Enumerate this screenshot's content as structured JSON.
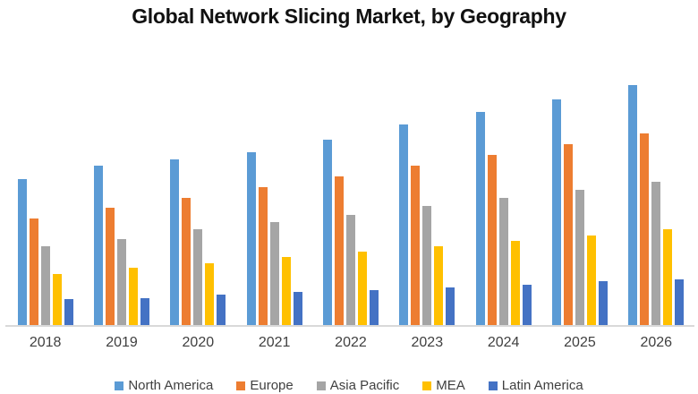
{
  "chart_data": {
    "type": "bar",
    "title": "Global Network Slicing Market, by Geography",
    "categories": [
      "2018",
      "2019",
      "2020",
      "2021",
      "2022",
      "2023",
      "2024",
      "2025",
      "2026"
    ],
    "series": [
      {
        "name": "North America",
        "color": "#5B9BD5",
        "values": [
          61,
          66.5,
          69,
          72,
          77.5,
          83.5,
          89,
          94,
          100
        ]
      },
      {
        "name": "Europe",
        "color": "#ED7D31",
        "values": [
          44.5,
          49,
          53,
          57.5,
          62,
          66.5,
          71,
          75.5,
          80
        ]
      },
      {
        "name": "Asia Pacific",
        "color": "#A5A5A5",
        "values": [
          33,
          36,
          40,
          43,
          46,
          50,
          53,
          56.5,
          60
        ]
      },
      {
        "name": "MEA",
        "color": "#FFC000",
        "values": [
          21.5,
          24,
          26,
          28.5,
          31,
          33,
          35.5,
          37.5,
          40
        ]
      },
      {
        "name": "Latin America",
        "color": "#4472C4",
        "values": [
          11,
          11.5,
          13,
          14,
          15,
          16,
          17,
          18.5,
          19.5
        ]
      }
    ],
    "ylim": [
      0,
      110
    ],
    "xlabel": "",
    "ylabel": "",
    "y_axis_visible": false,
    "gridlines": false,
    "legend_position": "bottom"
  },
  "colors": {
    "axis_line": "#D9D9D9",
    "label_text": "#404040",
    "title_text": "#111111",
    "background": "#FFFFFF"
  }
}
